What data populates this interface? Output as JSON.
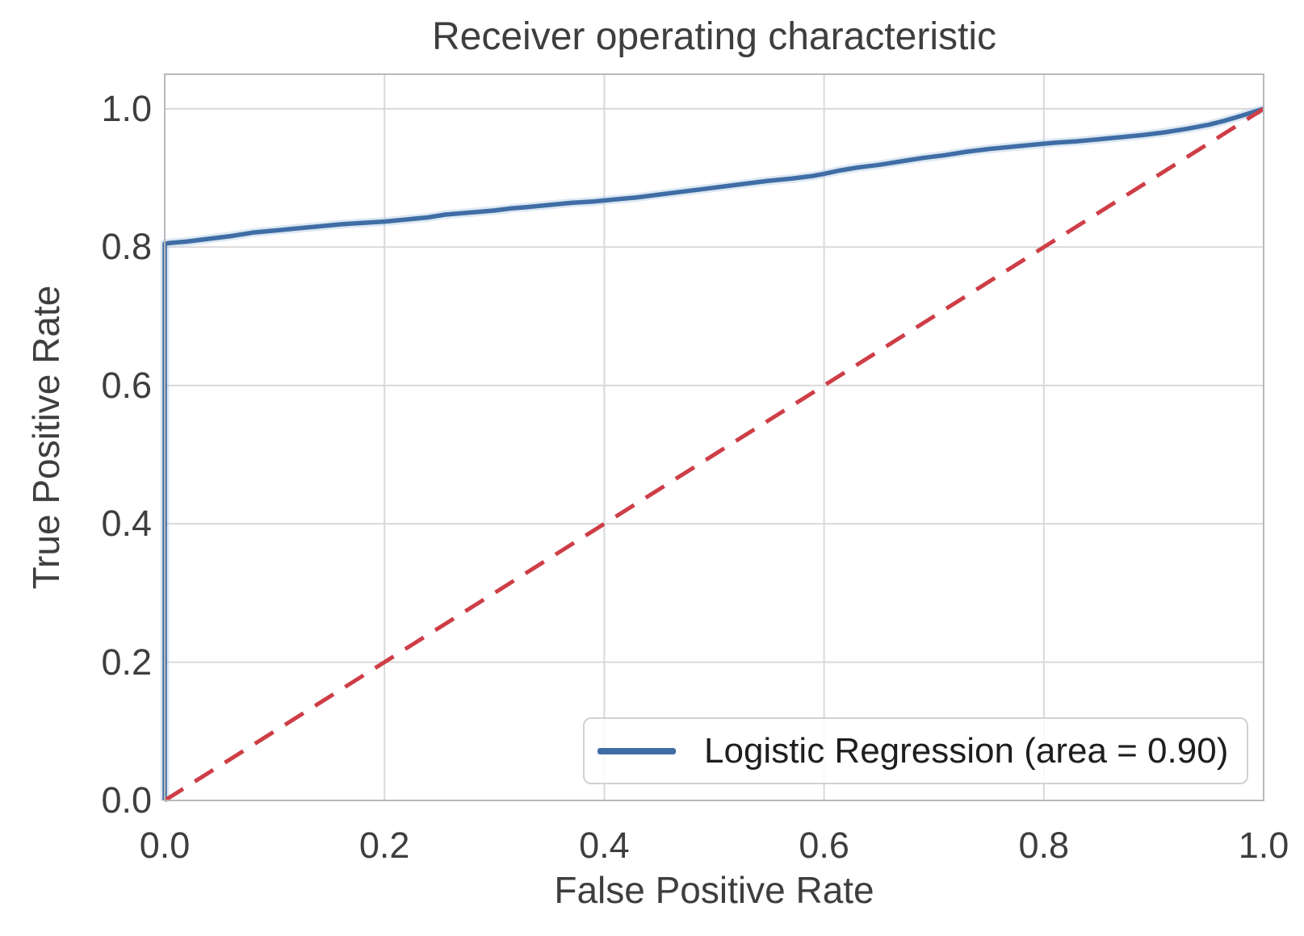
{
  "figure": {
    "title": "Receiver operating characteristic",
    "xlabel": "False Positive Rate",
    "ylabel": "True Positive Rate"
  },
  "legend": {
    "position": "lower right",
    "entries": [
      {
        "label": "Logistic Regression (area = 0.90)",
        "color": "#3f6da5",
        "style": "solid"
      }
    ]
  },
  "chart_data": {
    "type": "line",
    "title": "Receiver operating characteristic",
    "xlabel": "False Positive Rate",
    "ylabel": "True Positive Rate",
    "xlim": [
      0.0,
      1.0
    ],
    "ylim": [
      0.0,
      1.05
    ],
    "xticks": [
      "0.0",
      "0.2",
      "0.4",
      "0.6",
      "0.8",
      "1.0"
    ],
    "yticks": [
      "0.0",
      "0.2",
      "0.4",
      "0.6",
      "0.8",
      "1.0"
    ],
    "grid": true,
    "legend_position": "lower right",
    "colors": {
      "roc_blue": "#3f6da5",
      "roc_halo": "#b3cbe4",
      "chance_red": "#ce3e47",
      "grid": "#d9d9d9",
      "spine": "#b6babd",
      "text": "#3e3e3e",
      "background": "#ffffff"
    },
    "series": [
      {
        "name": "Logistic Regression (area = 0.90)",
        "area": 0.9,
        "color": "#3f6da5",
        "halo_color": "#b3cbe4",
        "style": "solid",
        "points": [
          [
            0.0,
            0.0
          ],
          [
            0.0,
            0.805
          ],
          [
            0.005,
            0.806
          ],
          [
            0.02,
            0.808
          ],
          [
            0.04,
            0.812
          ],
          [
            0.06,
            0.816
          ],
          [
            0.08,
            0.821
          ],
          [
            0.1,
            0.824
          ],
          [
            0.12,
            0.827
          ],
          [
            0.14,
            0.83
          ],
          [
            0.16,
            0.833
          ],
          [
            0.18,
            0.835
          ],
          [
            0.2,
            0.837
          ],
          [
            0.22,
            0.84
          ],
          [
            0.24,
            0.843
          ],
          [
            0.255,
            0.847
          ],
          [
            0.27,
            0.849
          ],
          [
            0.285,
            0.851
          ],
          [
            0.3,
            0.853
          ],
          [
            0.315,
            0.856
          ],
          [
            0.33,
            0.858
          ],
          [
            0.35,
            0.861
          ],
          [
            0.37,
            0.864
          ],
          [
            0.39,
            0.866
          ],
          [
            0.41,
            0.869
          ],
          [
            0.43,
            0.872
          ],
          [
            0.45,
            0.876
          ],
          [
            0.47,
            0.88
          ],
          [
            0.49,
            0.884
          ],
          [
            0.51,
            0.888
          ],
          [
            0.53,
            0.892
          ],
          [
            0.55,
            0.896
          ],
          [
            0.57,
            0.899
          ],
          [
            0.59,
            0.903
          ],
          [
            0.6,
            0.906
          ],
          [
            0.615,
            0.911
          ],
          [
            0.63,
            0.915
          ],
          [
            0.65,
            0.919
          ],
          [
            0.67,
            0.924
          ],
          [
            0.69,
            0.929
          ],
          [
            0.71,
            0.933
          ],
          [
            0.73,
            0.938
          ],
          [
            0.75,
            0.942
          ],
          [
            0.77,
            0.945
          ],
          [
            0.79,
            0.948
          ],
          [
            0.81,
            0.951
          ],
          [
            0.83,
            0.953
          ],
          [
            0.85,
            0.956
          ],
          [
            0.87,
            0.959
          ],
          [
            0.89,
            0.962
          ],
          [
            0.91,
            0.966
          ],
          [
            0.93,
            0.971
          ],
          [
            0.95,
            0.977
          ],
          [
            0.965,
            0.983
          ],
          [
            0.98,
            0.99
          ],
          [
            0.99,
            0.995
          ],
          [
            1.0,
            1.0
          ]
        ]
      },
      {
        "name": "Chance diagonal",
        "color": "#ce3e47",
        "style": "dashed",
        "points": [
          [
            0.0,
            0.0
          ],
          [
            1.0,
            1.0
          ]
        ]
      }
    ]
  }
}
